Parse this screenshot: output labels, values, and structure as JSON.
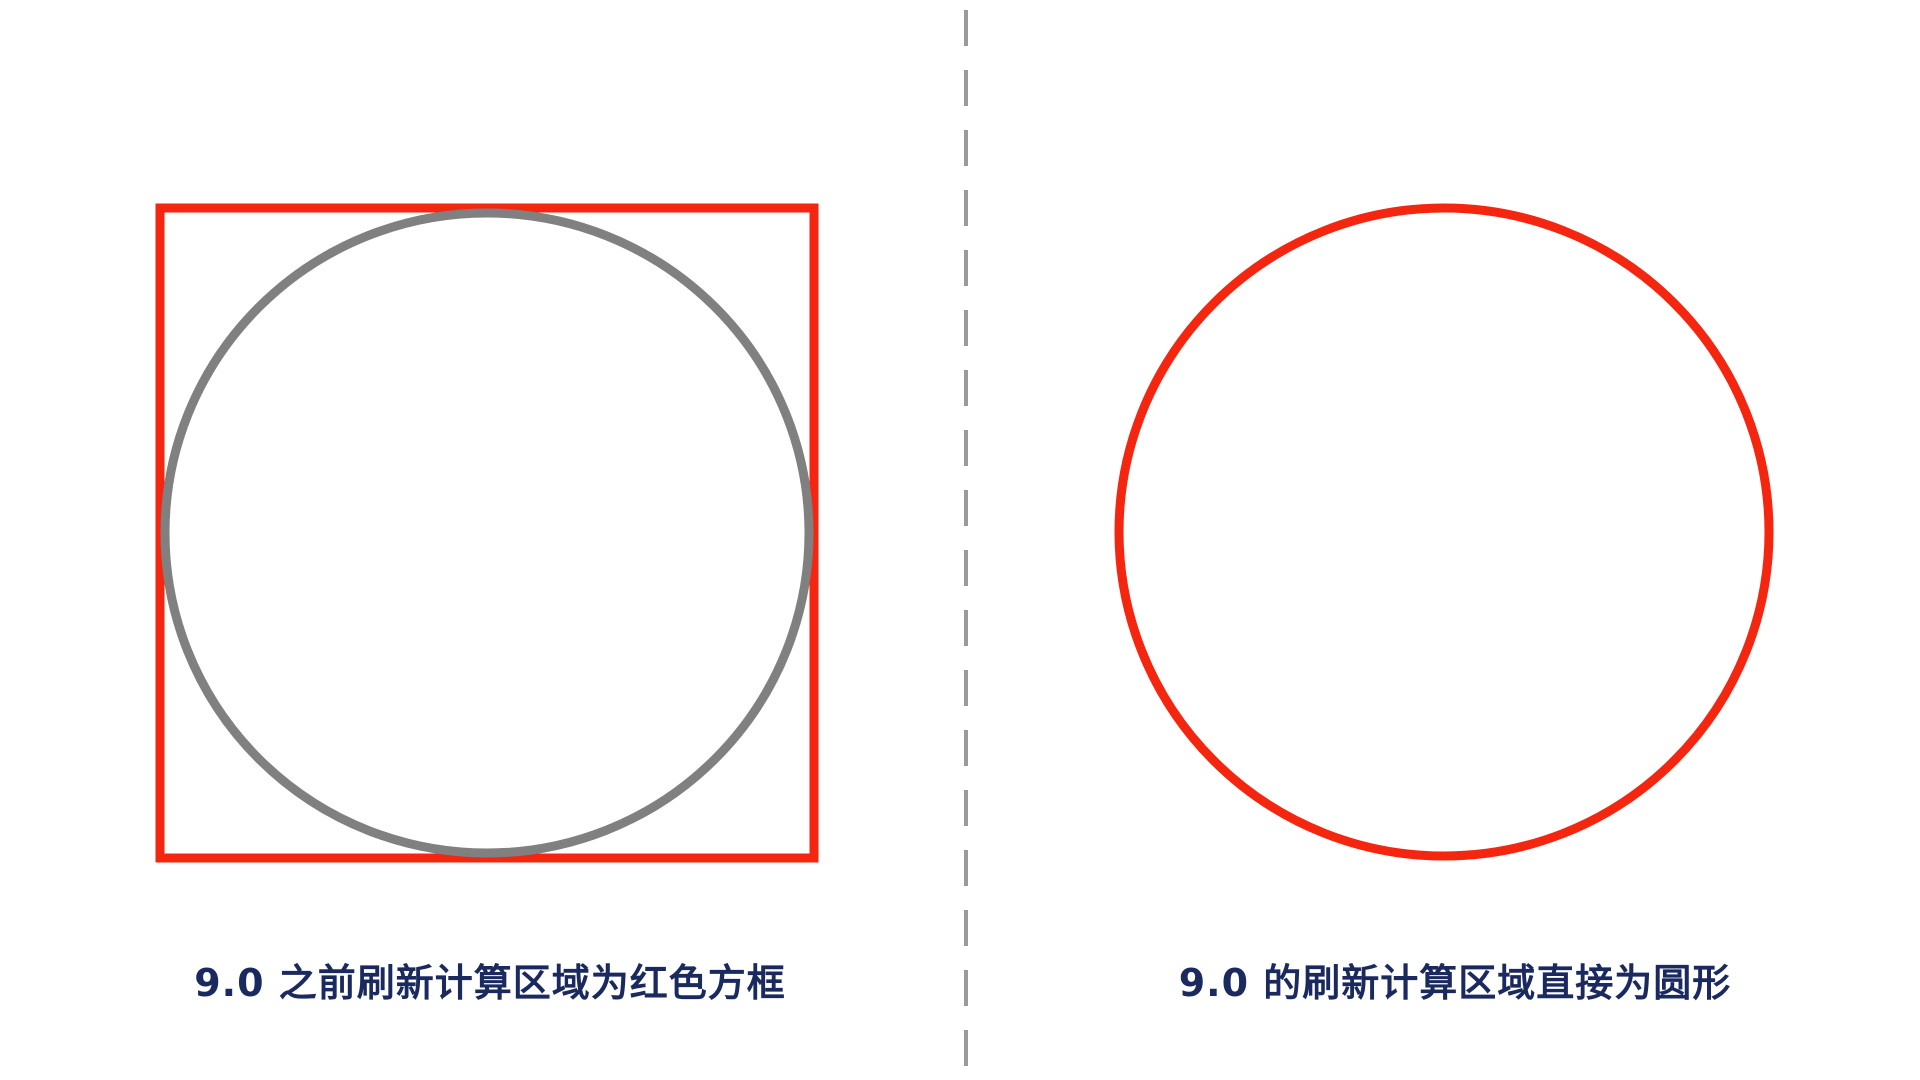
{
  "left_panel": {
    "caption": "9.0 之前刷新计算区域为红色方框"
  },
  "right_panel": {
    "caption": "9.0 的刷新计算区域直接为圆形"
  },
  "colors": {
    "background": "#ffffff",
    "highlight_red": "#f5260f",
    "circle_gray": "#808080",
    "divider_gray": "#9a9a9a",
    "caption_navy": "#1a2a5e"
  }
}
